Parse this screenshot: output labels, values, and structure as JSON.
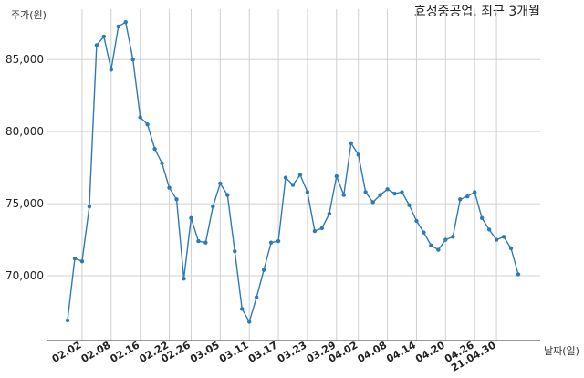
{
  "chart_data": {
    "type": "line",
    "title": "효성중공업, 최근 3개월",
    "ylabel": "주가(원)",
    "xlabel": "날짜(일)",
    "ylim": [
      65500,
      88500
    ],
    "yticks": [
      70000,
      75000,
      80000,
      85000
    ],
    "ytick_labels": [
      "70,000",
      "75,000",
      "80,000",
      "85,000"
    ],
    "x_tick_labels": [
      "02.02",
      "02.08",
      "02.16",
      "02.22",
      "02.26",
      "03.05",
      "03.11",
      "03.17",
      "03.23",
      "03.29",
      "04.02",
      "04.08",
      "04.14",
      "04.20",
      "04.26",
      "21.04.30"
    ],
    "x_tick_index": [
      2,
      6,
      10,
      14,
      17,
      21,
      25,
      29,
      33,
      37,
      40,
      44,
      48,
      52,
      56,
      59
    ],
    "grid": true,
    "series_color": "#2e7ab4",
    "series": [
      {
        "values": [
          66900,
          71200,
          71000,
          74800,
          86000,
          86600,
          84300,
          87300,
          87600,
          85000,
          81000,
          80500,
          78800,
          77800,
          76100,
          75300,
          69800,
          74000,
          72400,
          72300,
          74800,
          76400,
          75600,
          71700,
          67700,
          66800,
          68500,
          70400,
          72300,
          72400,
          76800,
          76300,
          77000,
          75800,
          73100,
          73300,
          74300,
          76900,
          75600,
          79200,
          78400,
          75800,
          75100,
          75600,
          76000,
          75700,
          75800,
          74900,
          73800,
          73000,
          72100,
          71800,
          72500,
          72700,
          75300,
          75500,
          75800,
          74000,
          73200,
          72500,
          72700,
          71900,
          70100
        ]
      }
    ]
  }
}
